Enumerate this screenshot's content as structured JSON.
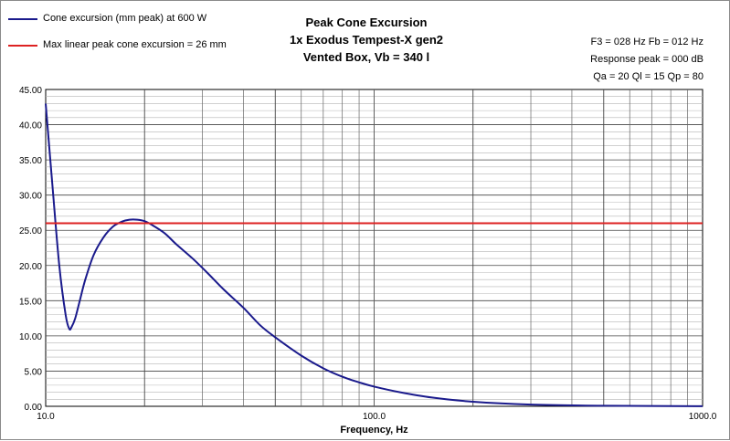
{
  "chart_data": {
    "type": "line",
    "title": [
      "Peak Cone Excursion",
      "1x Exodus Tempest-X gen2",
      "Vented Box, Vb = 340 l"
    ],
    "xlabel": "Frequency, Hz",
    "ylabel": "",
    "xscale": "log",
    "xlim": [
      10,
      1000
    ],
    "ylim": [
      0,
      45
    ],
    "x_ticks": [
      "10.0",
      "100.0",
      "1000.0"
    ],
    "y_ticks": [
      "0.00",
      "5.00",
      "10.00",
      "15.00",
      "20.00",
      "25.00",
      "30.00",
      "35.00",
      "40.00",
      "45.00"
    ],
    "grid": true,
    "legend_placement": "top-left",
    "series": [
      {
        "name": "Cone excursion (mm peak) at 600 W",
        "color": "#1a1a8c",
        "x": [
          10,
          10.5,
          11,
          11.5,
          11.8,
          12,
          12.3,
          12.7,
          13.2,
          14,
          15,
          16,
          17,
          18,
          19,
          20,
          21,
          23,
          25,
          28,
          31,
          35,
          40,
          45,
          50,
          60,
          70,
          80,
          90,
          100,
          120,
          150,
          200,
          300,
          500,
          1000
        ],
        "y": [
          43,
          31,
          20,
          13,
          11,
          11.3,
          12.5,
          15,
          18,
          21.5,
          24,
          25.5,
          26.2,
          26.5,
          26.5,
          26.3,
          25.8,
          24.6,
          23,
          21,
          19,
          16.5,
          14,
          11.5,
          9.8,
          7.2,
          5.4,
          4.2,
          3.4,
          2.8,
          2,
          1.25,
          0.65,
          0.25,
          0.08,
          0.01
        ]
      },
      {
        "name": "Max linear peak cone excursion = 26 mm",
        "color": "#dd2222",
        "x": [
          10,
          1000
        ],
        "y": [
          26,
          26
        ]
      }
    ]
  },
  "info": {
    "f3_fb": "F3 = 028 Hz  Fb = 012 Hz",
    "response_peak": "Response peak = 000 dB",
    "q_values": "Qa = 20  Ql = 15  Qp = 80"
  }
}
